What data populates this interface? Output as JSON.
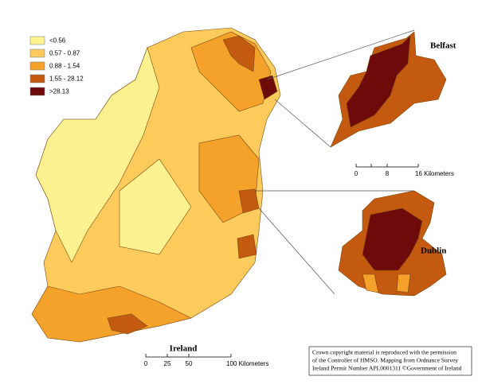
{
  "legend": {
    "items": [
      {
        "label": "<0.56",
        "color": "#fdf28f"
      },
      {
        "label": "0.57 - 0.87",
        "color": "#fccb5c"
      },
      {
        "label": "0.88 - 1.54",
        "color": "#f4a22a"
      },
      {
        "label": "1.55 - 28.12",
        "color": "#c45a0f"
      },
      {
        "label": ">28.13",
        "color": "#6e0a0a"
      }
    ]
  },
  "insets": [
    {
      "label": "Belfast"
    },
    {
      "label": "Dublin"
    }
  ],
  "scale_bars": [
    {
      "title": "Ireland",
      "labels": [
        "0",
        "25",
        "50",
        "100 Kilometers"
      ]
    },
    {
      "labels": [
        "0",
        "8",
        "16 Kilometers"
      ]
    }
  ],
  "copyright": [
    "Crown copyright material is reproduced with the permission",
    "of the Controller of HMSO. Mapping from Ordnance Survey",
    "Ireland Permit Number APL0001311 ©Government of Ireland"
  ]
}
